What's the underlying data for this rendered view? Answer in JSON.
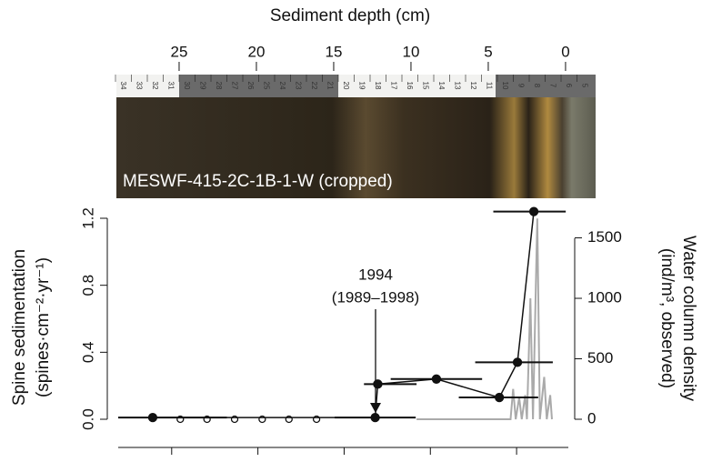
{
  "chart_data": {
    "type": "scatter",
    "x2label": "Sediment depth (cm)",
    "x2lim": [
      28.94,
      -0.18
    ],
    "x2ticks": [
      25,
      20,
      15,
      10,
      5,
      0
    ],
    "ylabel": [
      "Spine sedimentation",
      "(spines·cm⁻²·yr⁻¹)"
    ],
    "y2label": [
      "Water column density",
      "(ind/m³, observed)"
    ],
    "xlim": [
      1963.8,
      2016
    ],
    "xticks": [
      1970,
      1980,
      1990,
      2000,
      2010
    ],
    "ylim": [
      0,
      1.2
    ],
    "yticks": [
      {
        "value": 0,
        "label": "0.0"
      },
      0.4,
      0.8,
      1.2
    ],
    "y2lim": [
      0,
      1662
    ],
    "y2ticks": [
      0,
      500,
      1000,
      1500
    ],
    "annotation": [
      "1994",
      "(1989–1998)"
    ],
    "series": [
      {
        "color": "#111111",
        "x": [
          1967.8,
          1993.6,
          1993.9,
          2000.7,
          2008.0,
          2010.1,
          2012.0
        ],
        "values": [
          0.01,
          0.01,
          0.21,
          0.24,
          0.13,
          0.34,
          1.24
        ],
        "x_ranges": [
          [
            1963.8,
            1976.4
          ],
          [
            1988.9,
            1998.3
          ],
          [
            1992.3,
            1998.4
          ],
          [
            1995.4,
            2006.0
          ],
          [
            2003.3,
            2012.5
          ],
          [
            2005.2,
            2014.2
          ],
          [
            2007.3,
            2015.7
          ]
        ]
      },
      {
        "color": "#111111",
        "x": [
          1971.0,
          1974.1,
          1977.3,
          1980.5,
          1983.6,
          1986.8
        ],
        "values": [
          0,
          0,
          0,
          0,
          0,
          0
        ]
      },
      {
        "color": "#aaaaaa",
        "axis": "y2",
        "x": [
          1998.4,
          2009.3,
          2009.6,
          2009.9,
          2010.3,
          2010.6,
          2011.0,
          2011.2,
          2011.6,
          2011.9,
          2012.4,
          2012.7,
          2013.2,
          2013.5,
          2013.9,
          2014.1
        ],
        "values": [
          0,
          0,
          250,
          0,
          180,
          0,
          200,
          0,
          1000,
          0,
          1660,
          0,
          350,
          0,
          200,
          0
        ]
      }
    ]
  },
  "photo": {
    "label": "MESWF-415-2C-1B-1-W (cropped)",
    "ruler_labels": [
      34,
      33,
      32,
      31,
      30,
      29,
      28,
      27,
      26,
      25,
      24,
      23,
      22,
      21,
      20,
      19,
      18,
      17,
      16,
      15,
      14,
      13,
      12,
      11,
      10,
      9,
      8,
      7,
      6,
      5
    ]
  }
}
